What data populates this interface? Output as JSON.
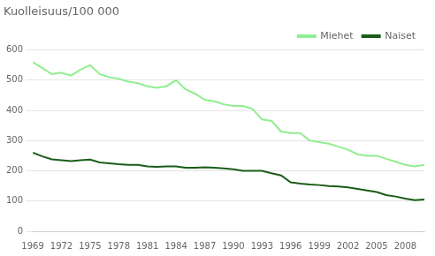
{
  "chart_data": {
    "type": "line",
    "title": "Kuolleisuus/100 000",
    "x": [
      1969,
      1970,
      1971,
      1972,
      1973,
      1974,
      1975,
      1976,
      1977,
      1978,
      1979,
      1980,
      1981,
      1982,
      1983,
      1984,
      1985,
      1986,
      1987,
      1988,
      1989,
      1990,
      1991,
      1992,
      1993,
      1994,
      1995,
      1996,
      1997,
      1998,
      1999,
      2000,
      2001,
      2002,
      2003,
      2004,
      2005,
      2006,
      2007,
      2008,
      2009,
      2010
    ],
    "series": [
      {
        "name": "Miehet",
        "color": "#90EE90",
        "values": [
          560,
          540,
          520,
          525,
          515,
          535,
          550,
          520,
          510,
          505,
          495,
          490,
          480,
          475,
          480,
          500,
          470,
          455,
          435,
          430,
          420,
          415,
          415,
          405,
          370,
          365,
          330,
          325,
          325,
          300,
          295,
          290,
          280,
          270,
          255,
          250,
          250,
          240,
          230,
          220,
          215,
          220
        ]
      },
      {
        "name": "Naiset",
        "color": "#1a5c1a",
        "values": [
          260,
          248,
          238,
          235,
          232,
          235,
          237,
          228,
          225,
          222,
          220,
          220,
          215,
          213,
          215,
          215,
          210,
          210,
          212,
          210,
          208,
          205,
          200,
          200,
          200,
          192,
          185,
          162,
          158,
          155,
          153,
          150,
          148,
          145,
          140,
          135,
          130,
          120,
          115,
          108,
          103,
          105
        ]
      }
    ],
    "xlim": [
      1969,
      2010
    ],
    "xticks": [
      1969,
      1972,
      1975,
      1978,
      1981,
      1984,
      1987,
      1990,
      1993,
      1996,
      1999,
      2002,
      2005,
      2008
    ],
    "ylim": [
      0,
      600
    ],
    "yticks": [
      0,
      100,
      200,
      300,
      400,
      500,
      600
    ],
    "grid": "y",
    "legend": "upper right"
  }
}
